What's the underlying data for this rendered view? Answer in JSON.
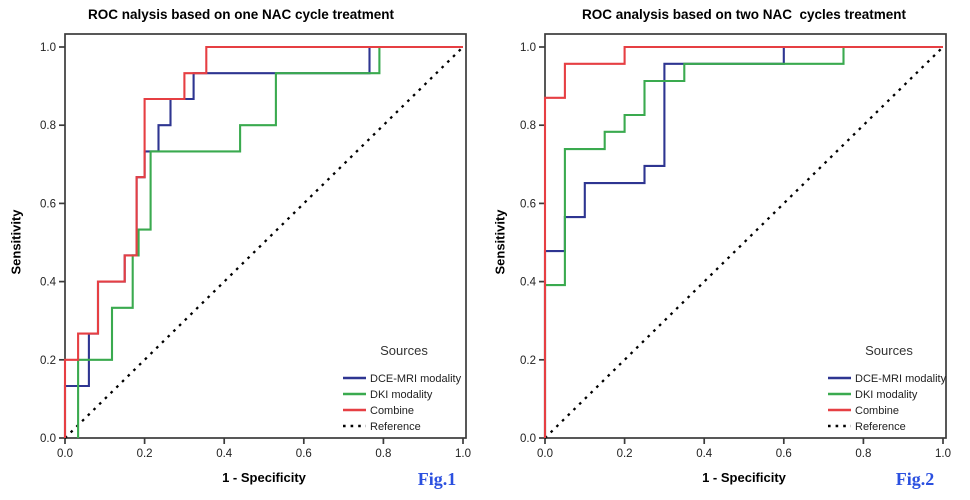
{
  "figure": {
    "background": "#ffffff",
    "accent_fig_color": "#2b50e0"
  },
  "chart_data": [
    {
      "type": "line",
      "subtype": "roc-step",
      "title": "ROC nalysis based on one NAC cycle treatment",
      "xlabel": "1 - Specificity",
      "ylabel": "Sensitivity",
      "fig_label": "Fig.1",
      "xlim": [
        0.0,
        1.0
      ],
      "ylim": [
        0.0,
        1.0
      ],
      "x_ticks": [
        "0.0",
        "0.2",
        "0.4",
        "0.6",
        "0.8",
        "1.0"
      ],
      "y_ticks": [
        "0.0",
        "0.2",
        "0.4",
        "0.6",
        "0.8",
        "1.0"
      ],
      "grid": "off",
      "legend_title": "Sources",
      "legend_position": "lower right inside",
      "series": [
        {
          "name": "DCE-MRI modality",
          "color": "#2e3591",
          "style": "solid",
          "points": [
            [
              0,
              0
            ],
            [
              0,
              0.133
            ],
            [
              0.06,
              0.133
            ],
            [
              0.06,
              0.267
            ],
            [
              0.083,
              0.267
            ],
            [
              0.083,
              0.4
            ],
            [
              0.15,
              0.4
            ],
            [
              0.15,
              0.467
            ],
            [
              0.18,
              0.467
            ],
            [
              0.18,
              0.667
            ],
            [
              0.2,
              0.667
            ],
            [
              0.2,
              0.733
            ],
            [
              0.235,
              0.733
            ],
            [
              0.235,
              0.8
            ],
            [
              0.265,
              0.8
            ],
            [
              0.265,
              0.867
            ],
            [
              0.323,
              0.867
            ],
            [
              0.323,
              0.933
            ],
            [
              0.765,
              0.933
            ],
            [
              0.765,
              1
            ],
            [
              1,
              1
            ]
          ]
        },
        {
          "name": "DKI  modality",
          "color": "#3aaa4f",
          "style": "solid",
          "points": [
            [
              0.033,
              0
            ],
            [
              0.033,
              0.2
            ],
            [
              0.118,
              0.2
            ],
            [
              0.118,
              0.333
            ],
            [
              0.17,
              0.333
            ],
            [
              0.17,
              0.467
            ],
            [
              0.185,
              0.467
            ],
            [
              0.185,
              0.533
            ],
            [
              0.215,
              0.533
            ],
            [
              0.215,
              0.733
            ],
            [
              0.44,
              0.733
            ],
            [
              0.44,
              0.8
            ],
            [
              0.53,
              0.8
            ],
            [
              0.53,
              0.933
            ],
            [
              0.79,
              0.933
            ],
            [
              0.79,
              1
            ],
            [
              1,
              1
            ]
          ]
        },
        {
          "name": "Combine",
          "color": "#e63f43",
          "style": "solid",
          "points": [
            [
              0,
              0
            ],
            [
              0,
              0.2
            ],
            [
              0.033,
              0.2
            ],
            [
              0.033,
              0.267
            ],
            [
              0.083,
              0.267
            ],
            [
              0.083,
              0.4
            ],
            [
              0.15,
              0.4
            ],
            [
              0.15,
              0.467
            ],
            [
              0.18,
              0.467
            ],
            [
              0.18,
              0.667
            ],
            [
              0.2,
              0.667
            ],
            [
              0.2,
              0.867
            ],
            [
              0.3,
              0.867
            ],
            [
              0.3,
              0.933
            ],
            [
              0.355,
              0.933
            ],
            [
              0.355,
              1
            ],
            [
              1,
              1
            ]
          ]
        },
        {
          "name": "Reference",
          "color": "#000000",
          "style": "dotted",
          "points": [
            [
              0,
              0
            ],
            [
              1,
              1
            ]
          ]
        }
      ]
    },
    {
      "type": "line",
      "subtype": "roc-step",
      "title": "ROC analysis based on two NAC  cycles treatment",
      "xlabel": "1 - Specificity",
      "ylabel": "Sensitivity",
      "fig_label": "Fig.2",
      "xlim": [
        0.0,
        1.0
      ],
      "ylim": [
        0.0,
        1.0
      ],
      "x_ticks": [
        "0.0",
        "0.2",
        "0.4",
        "0.6",
        "0.8",
        "1.0"
      ],
      "y_ticks": [
        "0.0",
        "0.2",
        "0.4",
        "0.6",
        "0.8",
        "1.0"
      ],
      "grid": "off",
      "legend_title": "Sources",
      "legend_position": "lower right inside",
      "series": [
        {
          "name": "DCE-MRI modality",
          "color": "#2e3591",
          "style": "solid",
          "points": [
            [
              0,
              0
            ],
            [
              0,
              0.478
            ],
            [
              0.05,
              0.478
            ],
            [
              0.05,
              0.565
            ],
            [
              0.1,
              0.565
            ],
            [
              0.1,
              0.652
            ],
            [
              0.25,
              0.652
            ],
            [
              0.25,
              0.696
            ],
            [
              0.3,
              0.696
            ],
            [
              0.3,
              0.957
            ],
            [
              0.6,
              0.957
            ],
            [
              0.6,
              1
            ],
            [
              1,
              1
            ]
          ]
        },
        {
          "name": "DKI  modality",
          "color": "#3aaa4f",
          "style": "solid",
          "points": [
            [
              0,
              0
            ],
            [
              0,
              0.391
            ],
            [
              0.05,
              0.391
            ],
            [
              0.05,
              0.739
            ],
            [
              0.15,
              0.739
            ],
            [
              0.15,
              0.783
            ],
            [
              0.2,
              0.783
            ],
            [
              0.2,
              0.826
            ],
            [
              0.25,
              0.826
            ],
            [
              0.25,
              0.913
            ],
            [
              0.35,
              0.913
            ],
            [
              0.35,
              0.957
            ],
            [
              0.75,
              0.957
            ],
            [
              0.75,
              1
            ],
            [
              1,
              1
            ]
          ]
        },
        {
          "name": "Combine",
          "color": "#e63f43",
          "style": "solid",
          "points": [
            [
              0,
              0
            ],
            [
              0,
              0.87
            ],
            [
              0.05,
              0.87
            ],
            [
              0.05,
              0.957
            ],
            [
              0.2,
              0.957
            ],
            [
              0.2,
              1
            ],
            [
              1,
              1
            ]
          ]
        },
        {
          "name": "Reference",
          "color": "#000000",
          "style": "dotted",
          "points": [
            [
              0,
              0
            ],
            [
              1,
              1
            ]
          ]
        }
      ]
    }
  ]
}
